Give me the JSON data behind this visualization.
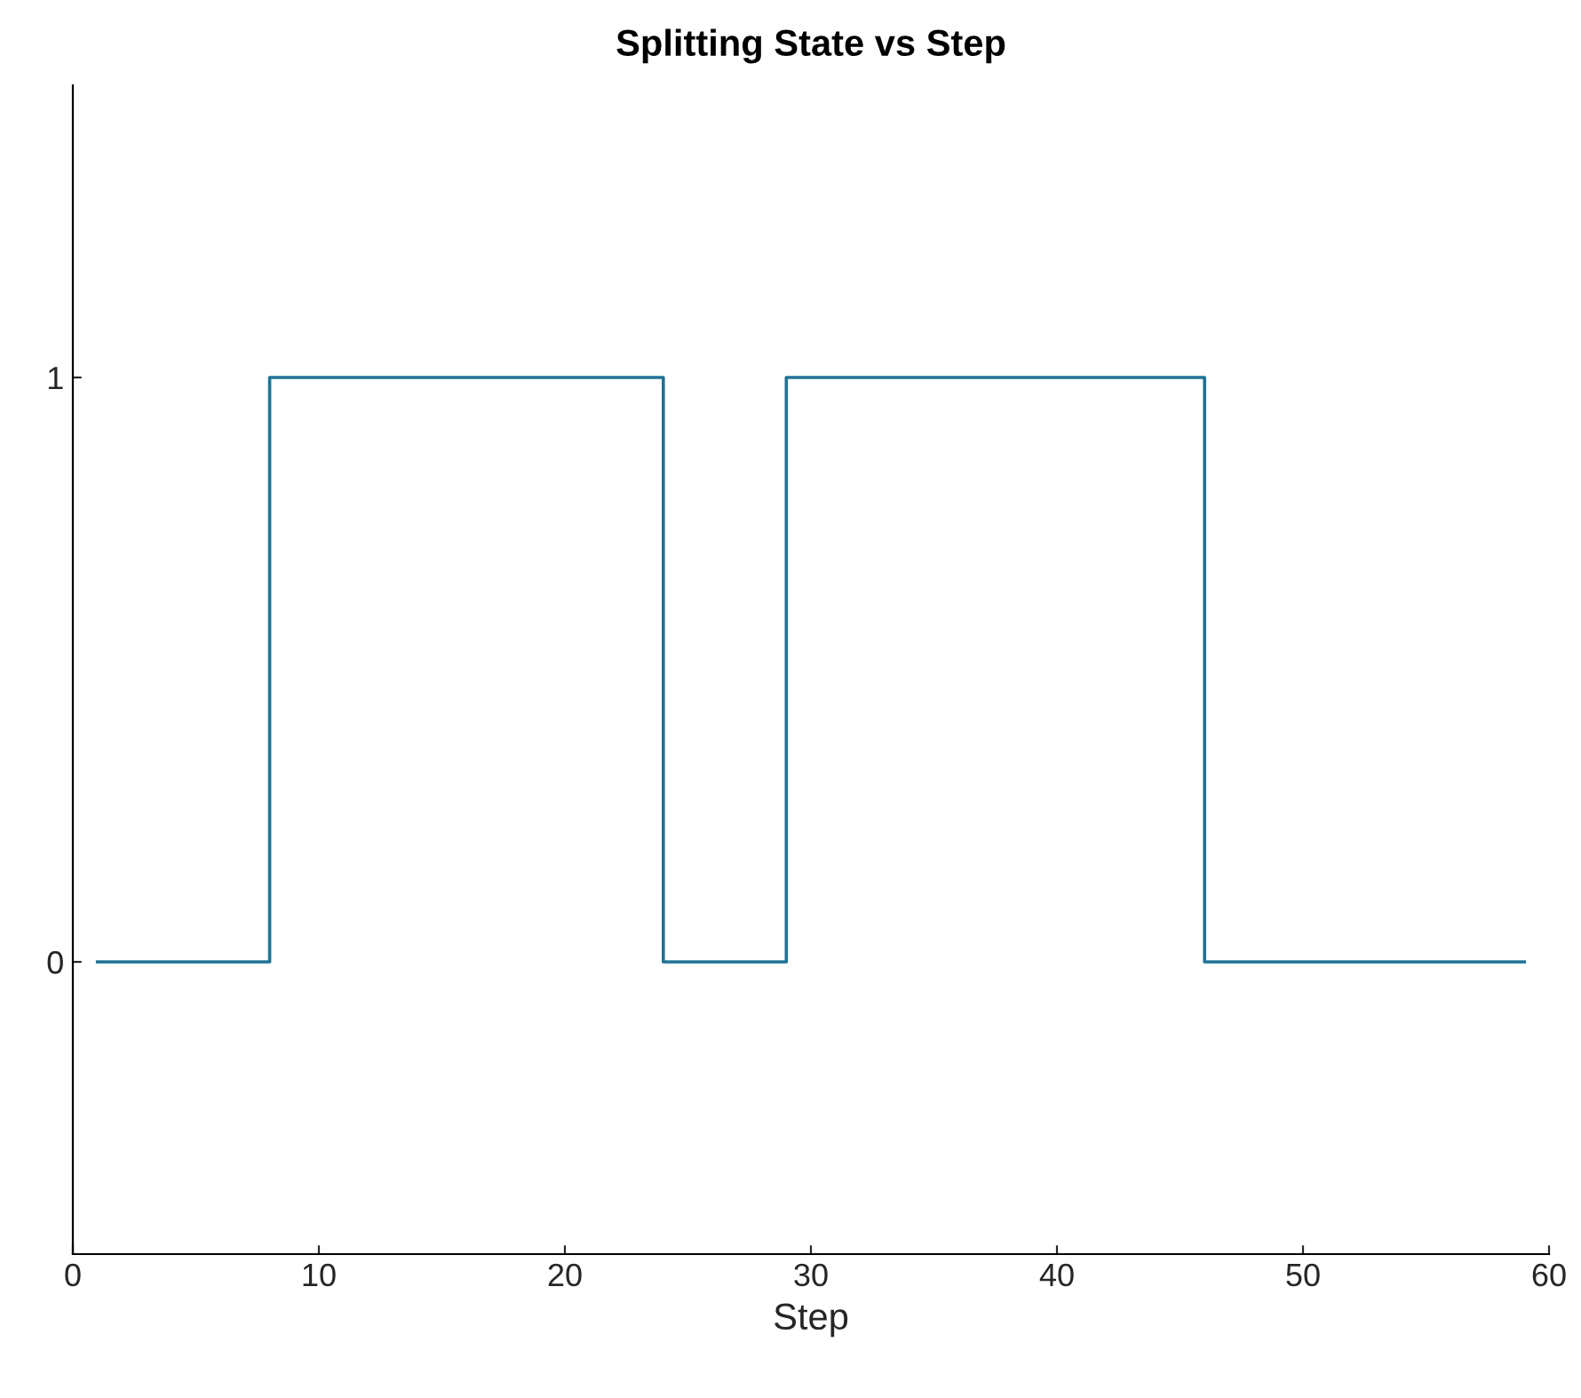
{
  "chart_data": {
    "type": "step",
    "title": "Splitting State vs Step",
    "xlabel": "Step",
    "x": [
      1,
      8,
      24,
      29,
      46,
      59
    ],
    "series": [
      {
        "color": "#1f7396",
        "values": [
          0,
          1,
          0,
          1,
          0,
          0
        ]
      }
    ],
    "xlim": [
      0,
      60
    ],
    "xticks": [
      0,
      10,
      20,
      30,
      40,
      50,
      60
    ],
    "ylim": [
      -0.5,
      1.5
    ],
    "yticks": [
      0,
      1
    ],
    "grid": false,
    "legend": false
  }
}
